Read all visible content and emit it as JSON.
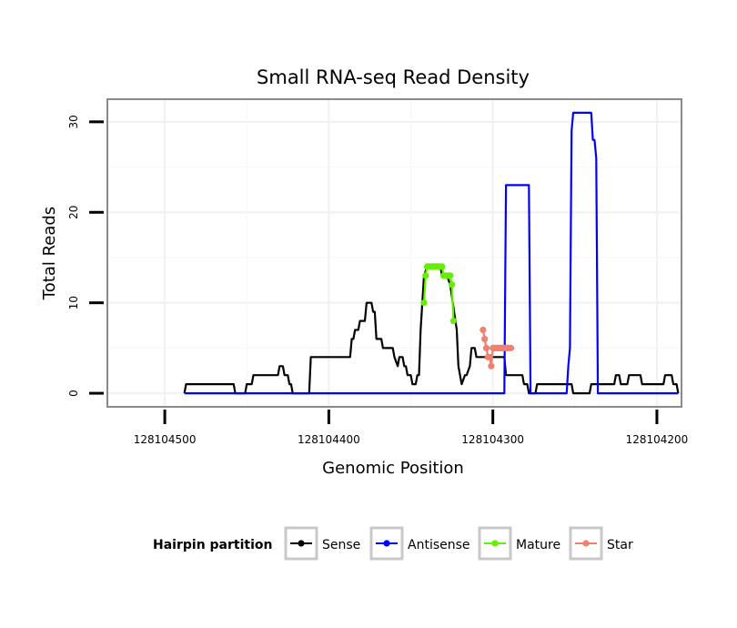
{
  "chart_data": {
    "type": "line",
    "title": "Small RNA-seq Read Density",
    "xlabel": "Genomic Position",
    "ylabel": "Total Reads",
    "xlim": [
      128104535,
      128104185
    ],
    "ylim": [
      -1.5,
      32.5
    ],
    "x_reversed": true,
    "x_ticks": [
      128104500,
      128104400,
      128104300,
      128104200
    ],
    "x_tick_labels": [
      "128104500",
      "128104400",
      "128104300",
      "128104200"
    ],
    "y_ticks": [
      0,
      10,
      20,
      30
    ],
    "y_tick_labels": [
      "0",
      "10",
      "20",
      "30"
    ],
    "grid": true,
    "legend": {
      "title": "Hairpin partition",
      "placement": "bottom",
      "entries": [
        {
          "name": "Sense",
          "color": "#000000"
        },
        {
          "name": "Antisense",
          "color": "#0000ff"
        },
        {
          "name": "Mature",
          "color": "#66ee00"
        },
        {
          "name": "Star",
          "color": "#f08070"
        }
      ]
    },
    "series": [
      {
        "name": "Sense",
        "color": "#000000",
        "style": "line",
        "x": [
          128104488,
          128104487,
          128104458,
          128104457,
          128104451,
          128104450,
          128104447,
          128104446,
          128104431,
          128104430,
          128104428,
          128104427,
          128104425,
          128104424,
          128104423,
          128104422,
          128104412,
          128104411,
          128104387,
          128104386,
          128104385,
          128104384,
          128104382,
          128104381,
          128104378,
          128104377,
          128104374,
          128104373,
          128104372,
          128104371,
          128104368,
          128104367,
          128104361,
          128104360,
          128104358,
          128104357,
          128104355,
          128104354,
          128104353,
          128104352,
          128104350,
          128104349,
          128104347,
          128104346,
          128104345,
          128104344,
          128104342,
          128104340,
          128104338,
          128104337,
          128104332,
          128104331,
          128104328,
          128104326,
          128104322,
          128104321,
          128104319,
          128104317,
          128104316,
          128104314,
          128104313,
          128104311,
          128104310,
          128104308,
          128104307,
          128104293,
          128104292,
          128104282,
          128104281,
          128104279,
          128104278,
          128104274,
          128104273,
          128104252,
          128104251,
          128104241,
          128104240,
          128104238,
          128104237,
          128104226,
          128104225,
          128104223,
          128104222,
          128104218,
          128104217,
          128104210,
          128104209,
          128104196,
          128104195,
          128104191,
          128104190,
          128104188,
          128104187
        ],
        "y": [
          0,
          1,
          1,
          0,
          0,
          1,
          1,
          2,
          2,
          3,
          3,
          2,
          2,
          1,
          1,
          0,
          0,
          4,
          4,
          6,
          6,
          7,
          7,
          8,
          8,
          10,
          10,
          9,
          9,
          6,
          6,
          5,
          5,
          4,
          3,
          4,
          4,
          3,
          3,
          2,
          2,
          1,
          1,
          2,
          2,
          7,
          13,
          14,
          14,
          14,
          14,
          13,
          13,
          12,
          7,
          3,
          1,
          2,
          2,
          3,
          5,
          5,
          4,
          4,
          4,
          4,
          2,
          2,
          1,
          1,
          0,
          0,
          1,
          1,
          0,
          0,
          1,
          1,
          1,
          1,
          2,
          2,
          1,
          1,
          2,
          2,
          1,
          1,
          2,
          2,
          1,
          1,
          0
        ]
      },
      {
        "name": "Antisense",
        "color": "#0000ff",
        "style": "line",
        "x": [
          128104488,
          128104293,
          128104292,
          128104278,
          128104277,
          128104261,
          128104255,
          128104254,
          128104253,
          128104252,
          128104251,
          128104240,
          128104239,
          128104238,
          128104237,
          128104236,
          128104187
        ],
        "y": [
          0,
          0,
          23,
          23,
          0,
          0,
          0,
          3,
          5,
          29,
          31,
          31,
          28,
          28,
          26,
          0,
          0
        ]
      },
      {
        "name": "Mature",
        "color": "#66ee00",
        "style": "line+points",
        "x": [
          128104342,
          128104341,
          128104340,
          128104339,
          128104338,
          128104337,
          128104336,
          128104335,
          128104334,
          128104333,
          128104332,
          128104331,
          128104330,
          128104329,
          128104328,
          128104327,
          128104326,
          128104325,
          128104324
        ],
        "y": [
          10,
          13,
          14,
          14,
          14,
          14,
          14,
          14,
          14,
          14,
          14,
          14,
          13,
          13,
          13,
          13,
          13,
          12,
          8
        ]
      },
      {
        "name": "Star",
        "color": "#f08070",
        "style": "line+points",
        "x": [
          128104306,
          128104305,
          128104304,
          128104303,
          128104302,
          128104301,
          128104300,
          128104299,
          128104298,
          128104297,
          128104296,
          128104295,
          128104294,
          128104293,
          128104292,
          128104291,
          128104290,
          128104289
        ],
        "y": [
          7,
          6,
          5,
          4,
          4,
          3,
          5,
          5,
          5,
          5,
          5,
          5,
          5,
          5,
          5,
          5,
          5,
          5
        ]
      }
    ]
  }
}
